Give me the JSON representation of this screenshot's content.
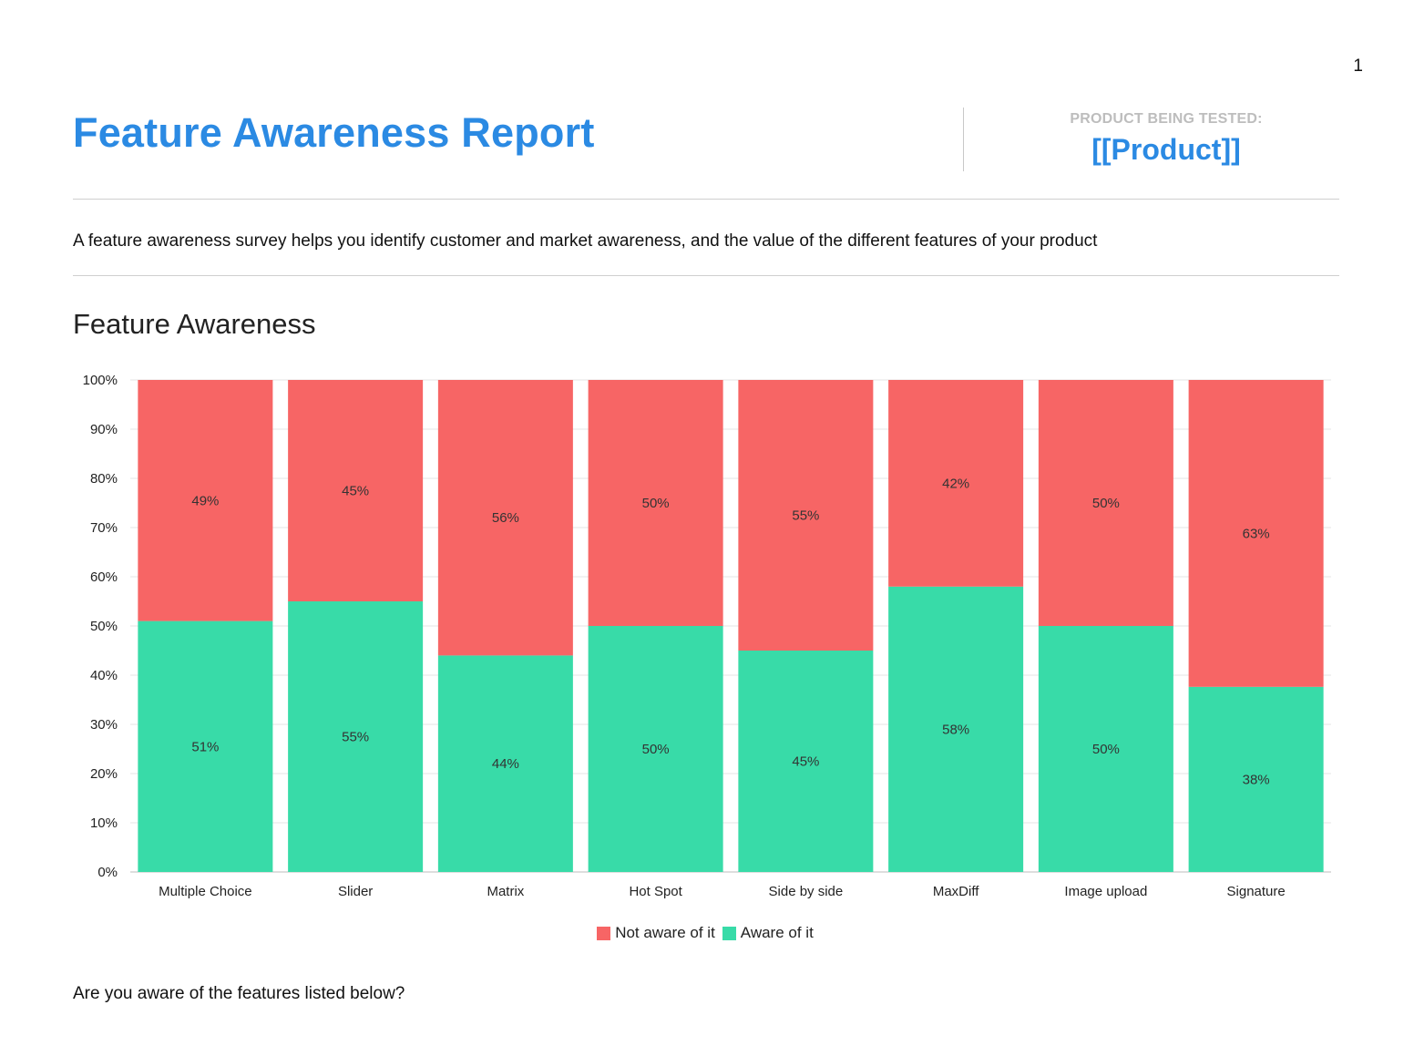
{
  "page_number": "1",
  "header": {
    "title": "Feature Awareness Report",
    "product_caption": "PRODUCT BEING TESTED:",
    "product_name": "[[Product]]"
  },
  "description": "A feature awareness survey helps you identify customer and market awareness, and the value of the different features of your product",
  "section_title": "Feature Awareness",
  "question": "Are you aware of the features listed below?",
  "colors": {
    "title_blue": "#2b8ae3",
    "not_aware": "#f76565",
    "aware": "#38dba8"
  },
  "chart_data": {
    "type": "bar",
    "stacked": true,
    "normalized_percent": true,
    "categories": [
      "Multiple Choice",
      "Slider",
      "Matrix",
      "Hot Spot",
      "Side by side",
      "MaxDiff",
      "Image upload",
      "Signature"
    ],
    "series": [
      {
        "name": "Aware of it",
        "color": "#38dba8",
        "values": [
          51,
          55,
          44,
          50,
          45,
          58,
          50,
          38
        ],
        "labels": [
          "51%",
          "55%",
          "44%",
          "50%",
          "45%",
          "58%",
          "50%",
          "38%"
        ]
      },
      {
        "name": "Not aware of it",
        "color": "#f76565",
        "values": [
          49,
          45,
          56,
          50,
          55,
          42,
          50,
          63
        ],
        "labels": [
          "49%",
          "45%",
          "56%",
          "50%",
          "55%",
          "42%",
          "50%",
          "63%"
        ]
      }
    ],
    "legend_order": [
      "Not aware of it",
      "Aware of it"
    ],
    "legend_position": "bottom",
    "ylim": [
      0,
      100
    ],
    "yticks": [
      "0%",
      "10%",
      "20%",
      "30%",
      "40%",
      "50%",
      "60%",
      "70%",
      "80%",
      "90%",
      "100%"
    ],
    "grid": true
  }
}
